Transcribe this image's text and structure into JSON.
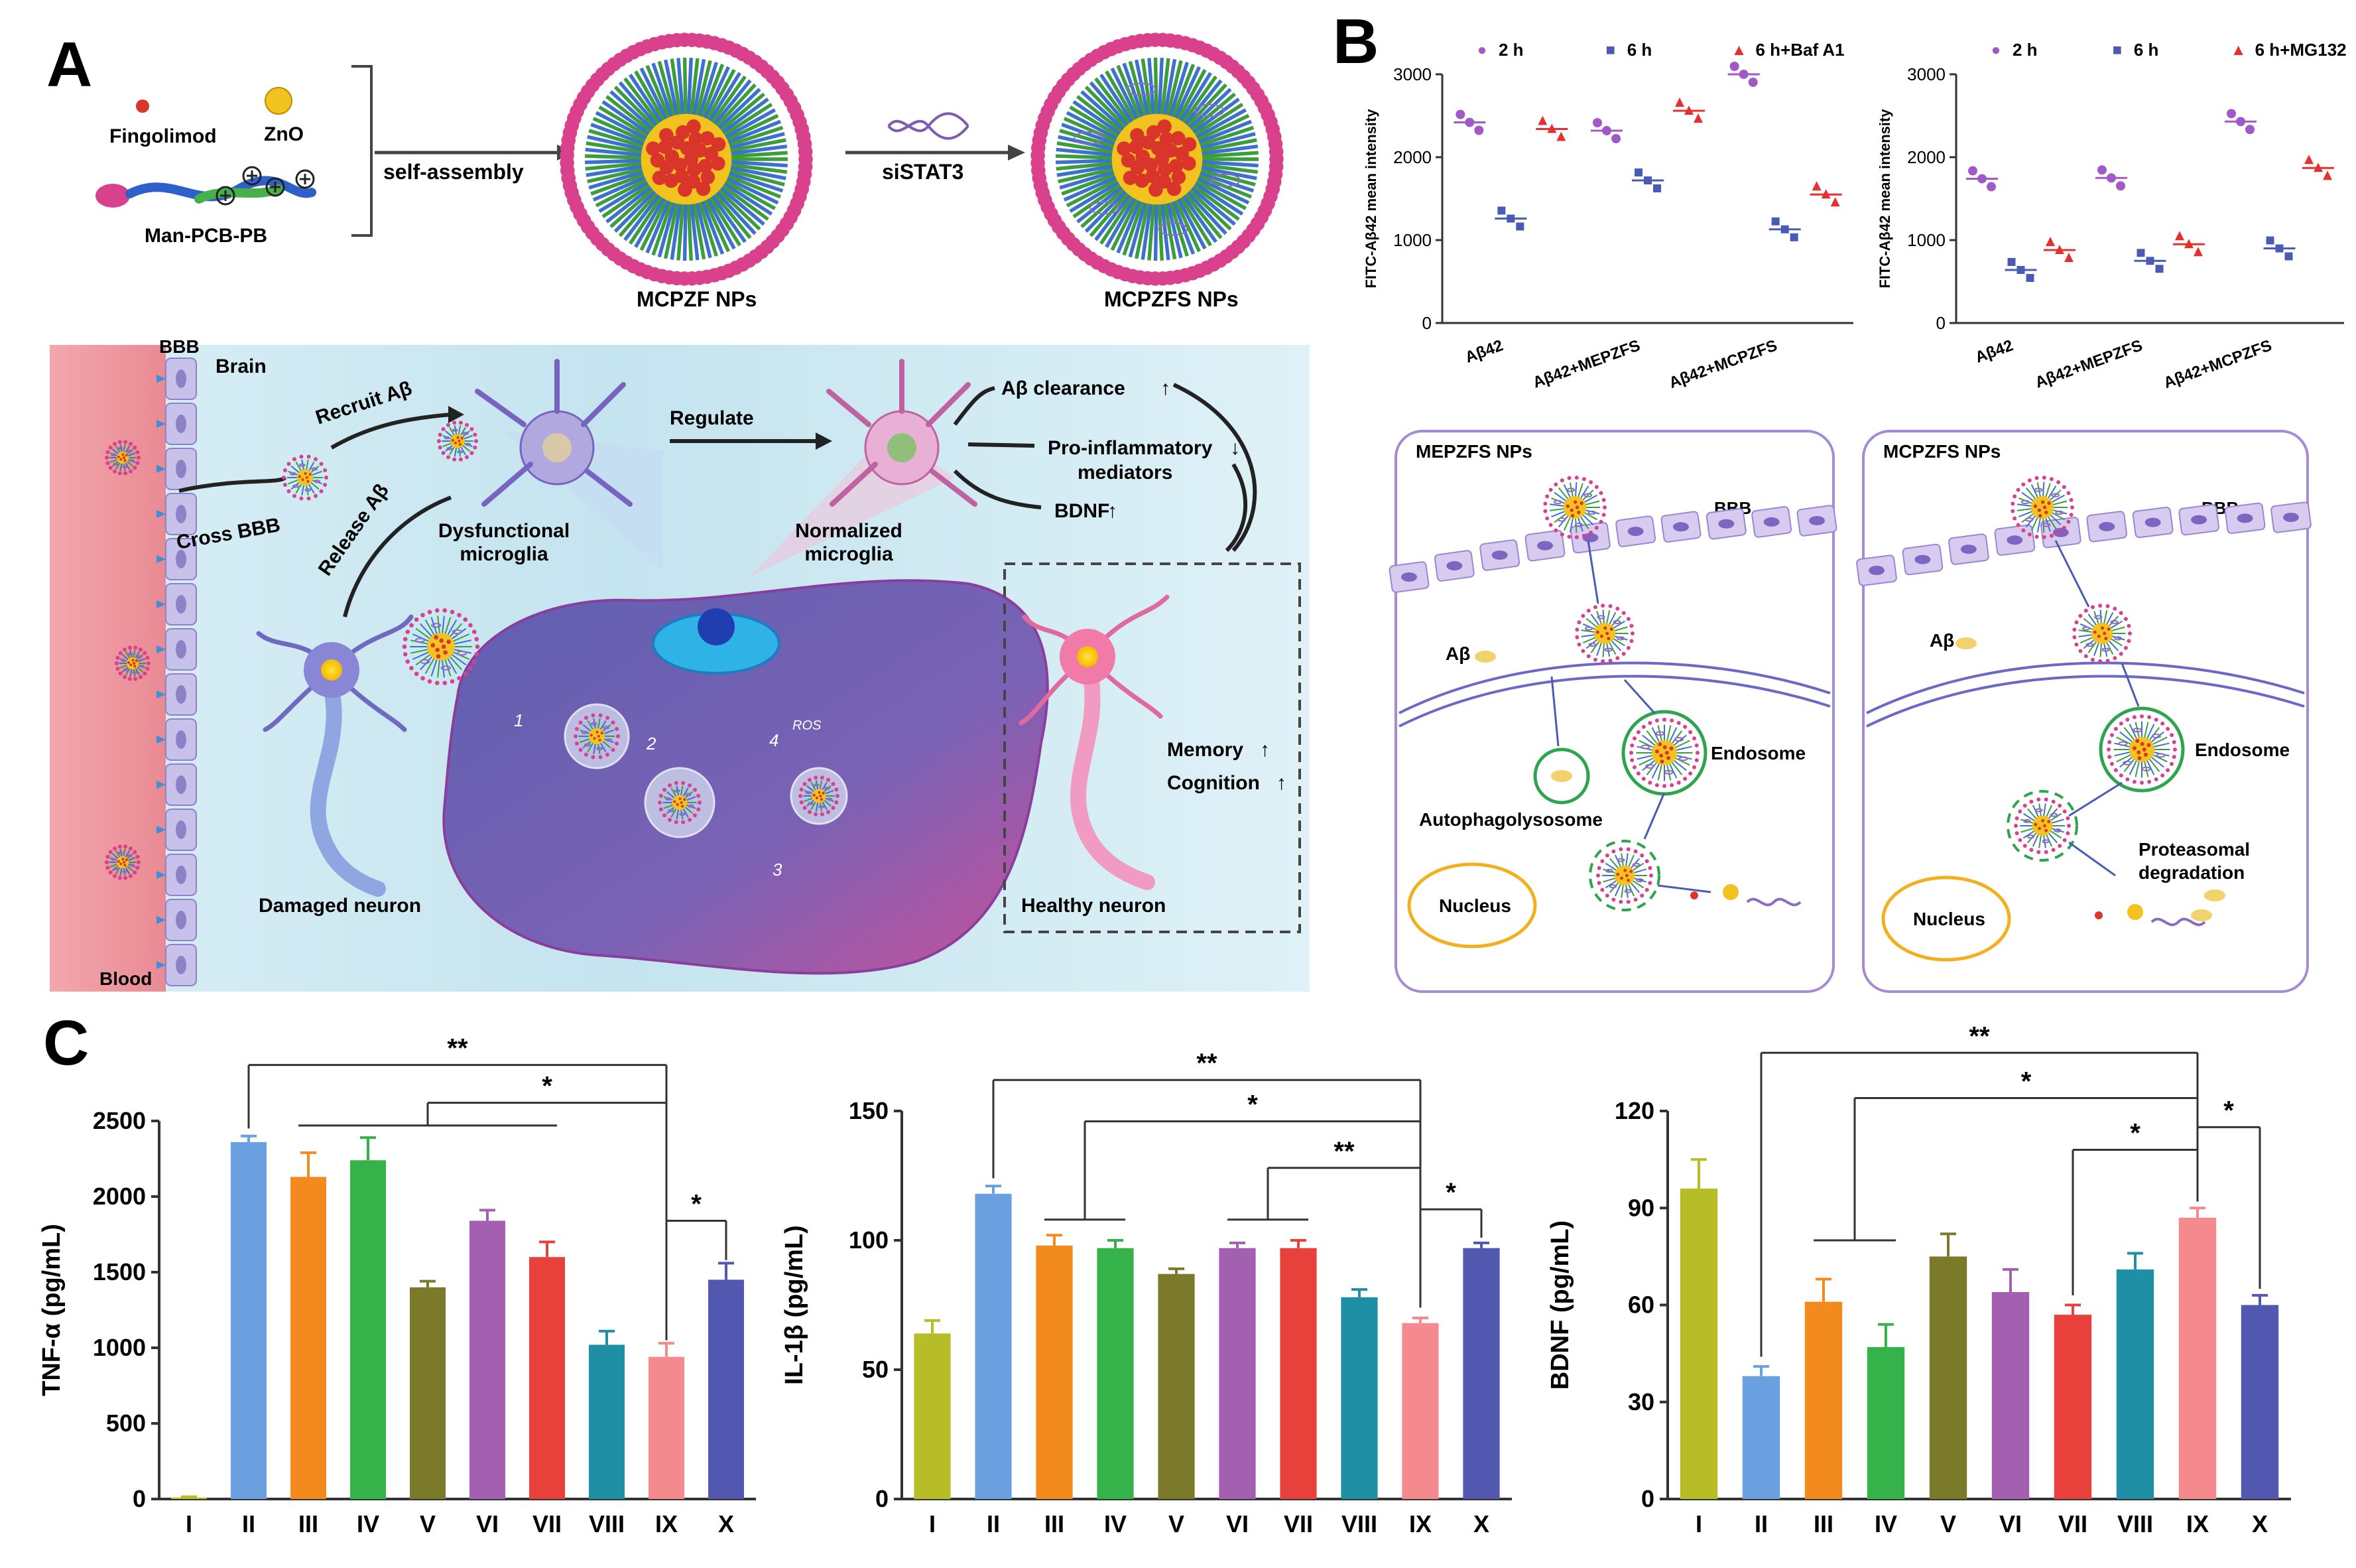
{
  "panel_labels": {
    "a": "A",
    "b": "B",
    "c": "C"
  },
  "colors": {
    "bar_I": "#b7bd26",
    "bar_II": "#6aa0e0",
    "bar_III": "#f28a1e",
    "bar_IV": "#35b24a",
    "bar_V": "#7a7a2a",
    "bar_VI": "#a35fb0",
    "bar_VII": "#e8413c",
    "bar_VIII": "#1e8fa5",
    "bar_IX": "#f48a8e",
    "bar_X": "#5257b0",
    "dot_purple": "#a259c8",
    "dot_blue": "#4a5bb5",
    "dot_red": "#e53030",
    "membrane": "#b9a4dc",
    "endosome": "#2fa44f",
    "nucleus": "#f2b01e",
    "np_core": "#d9352b",
    "np_shell": "#3a9f3a",
    "np_tip": "#d9418c"
  },
  "panel_a": {
    "legend": {
      "fingolimod": "Fingolimod",
      "zno": "ZnO",
      "polymer": "Man-PCB-PB"
    },
    "arrow1": "self-assembly",
    "arrow2": "siSTAT3",
    "np1": "MCPZF NPs",
    "np2": "MCPZFS NPs",
    "scheme": {
      "bbb": "BBB",
      "brain": "Brain",
      "blood": "Blood",
      "recruit": "Recruit Aβ",
      "cross": "Cross BBB",
      "release": "Release Aβ",
      "regulate": "Regulate",
      "dysfunctional": [
        "Dysfunctional",
        "microglia"
      ],
      "normalized": [
        "Normalized",
        "microglia"
      ],
      "clearance": "Aβ clearance",
      "proinflam": [
        "Pro-inflammatory",
        "mediators"
      ],
      "bdnf": "BDNF",
      "memory": "Memory",
      "cognition": "Cognition",
      "damaged": "Damaged neuron",
      "healthy": "Healthy neuron",
      "ros": "ROS",
      "steps": [
        "1",
        "2",
        "3",
        "4"
      ]
    }
  },
  "chart_data": [
    {
      "type": "scatter",
      "panel": "B-left",
      "title": "",
      "xlabel": "",
      "ylabel": "FITC-Aβ42 mean intensity",
      "ylim": [
        0,
        3000
      ],
      "yticks": [
        0,
        1000,
        2000,
        3000
      ],
      "categories": [
        "Aβ42",
        "Aβ42+MEPZFS",
        "Aβ42+MCPZFS"
      ],
      "series": [
        {
          "name": "2 h",
          "marker": "●",
          "values": [
            2420,
            2320,
            3000
          ]
        },
        {
          "name": "6 h",
          "marker": "■",
          "values": [
            1260,
            1720,
            1130
          ]
        },
        {
          "name": "6 h+Baf A1",
          "marker": "▲",
          "values": [
            2340,
            2560,
            1550
          ]
        }
      ],
      "legend": "top"
    },
    {
      "type": "scatter",
      "panel": "B-right",
      "title": "",
      "xlabel": "",
      "ylabel": "FITC-Aβ42 mean intensity",
      "ylim": [
        0,
        3000
      ],
      "yticks": [
        0,
        1000,
        2000,
        3000
      ],
      "categories": [
        "Aβ42",
        "Aβ42+MEPZFS",
        "Aβ42+MCPZFS"
      ],
      "series": [
        {
          "name": "2 h",
          "marker": "●",
          "values": [
            1740,
            1750,
            2430
          ]
        },
        {
          "name": "6 h",
          "marker": "■",
          "values": [
            640,
            750,
            900
          ]
        },
        {
          "name": "6 h+MG132",
          "marker": "▲",
          "values": [
            880,
            950,
            1870
          ]
        }
      ],
      "legend": "top"
    },
    {
      "type": "bar",
      "panel": "C-1",
      "title": "",
      "xlabel": "",
      "ylabel": "TNF-α (pg/mL)",
      "ylim": [
        0,
        2500
      ],
      "yticks": [
        0,
        500,
        1000,
        1500,
        2000,
        2500
      ],
      "categories": [
        "I",
        "II",
        "III",
        "IV",
        "V",
        "VI",
        "VII",
        "VIII",
        "IX",
        "X"
      ],
      "values": [
        10,
        2360,
        2130,
        2240,
        1400,
        1840,
        1600,
        1020,
        940,
        1450
      ],
      "errors": [
        5,
        40,
        160,
        150,
        40,
        70,
        100,
        90,
        90,
        110
      ],
      "annotations": [
        "**",
        "*",
        "*"
      ]
    },
    {
      "type": "bar",
      "panel": "C-2",
      "title": "",
      "xlabel": "",
      "ylabel": "IL-1β (pg/mL)",
      "ylim": [
        0,
        150
      ],
      "yticks": [
        0,
        50,
        100,
        150
      ],
      "categories": [
        "I",
        "II",
        "III",
        "IV",
        "V",
        "VI",
        "VII",
        "VIII",
        "IX",
        "X"
      ],
      "values": [
        64,
        118,
        98,
        97,
        87,
        97,
        97,
        78,
        68,
        97
      ],
      "errors": [
        5,
        3,
        4,
        3,
        2,
        2,
        3,
        3,
        2,
        2
      ],
      "annotations": [
        "**",
        "*",
        "**",
        "*"
      ]
    },
    {
      "type": "bar",
      "panel": "C-3",
      "title": "",
      "xlabel": "",
      "ylabel": "BDNF (pg/mL)",
      "ylim": [
        0,
        120
      ],
      "yticks": [
        0,
        30,
        60,
        90,
        120
      ],
      "categories": [
        "I",
        "II",
        "III",
        "IV",
        "V",
        "VI",
        "VII",
        "VIII",
        "IX",
        "X"
      ],
      "values": [
        96,
        38,
        61,
        47,
        75,
        64,
        57,
        71,
        87,
        60
      ],
      "errors": [
        9,
        3,
        7,
        7,
        7,
        7,
        3,
        5,
        3,
        3
      ],
      "annotations": [
        "**",
        "*",
        "*",
        "*"
      ]
    }
  ],
  "panel_b_scheme": {
    "left_title": "MEPZFS NPs",
    "right_title": "MCPZFS NPs",
    "bbb": "BBB",
    "abeta": "Aβ",
    "endosome": "Endosome",
    "autophagolysosome": "Autophagolysosome",
    "nucleus": "Nucleus",
    "proteasomal": [
      "Proteasomal",
      "degradation"
    ]
  }
}
